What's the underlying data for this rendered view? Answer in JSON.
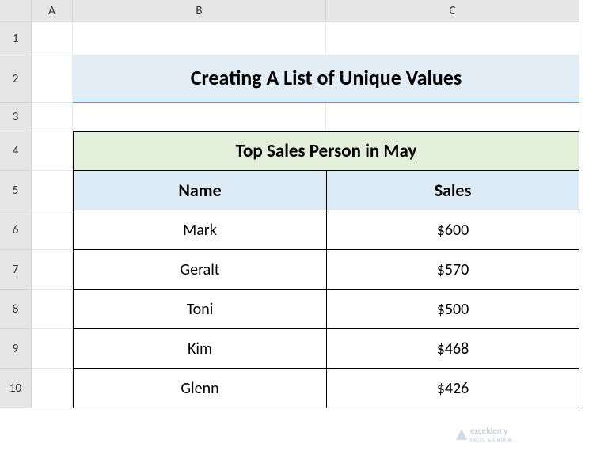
{
  "columns": [
    "A",
    "B",
    "C"
  ],
  "rows": [
    "1",
    "2",
    "3",
    "4",
    "5",
    "6",
    "7",
    "8",
    "9",
    "10"
  ],
  "title": "Creating A List of Unique Values",
  "table": {
    "caption": "Top Sales Person in May",
    "headers": {
      "name": "Name",
      "sales": "Sales"
    },
    "data": [
      {
        "name": "Mark",
        "sales": "$600"
      },
      {
        "name": "Geralt",
        "sales": "$570"
      },
      {
        "name": "Toni",
        "sales": "$500"
      },
      {
        "name": "Kim",
        "sales": "$468"
      },
      {
        "name": "Glenn",
        "sales": "$426"
      }
    ]
  },
  "watermark": {
    "brand": "exceldemy",
    "sub": "EXCEL & DATA A..."
  },
  "colors": {
    "title_bg": "#e3edf5",
    "title_underline": "#5b9bd5",
    "caption_bg": "#e2efda",
    "header_bg": "#ddebf7",
    "col_hdr_bg": "#e6e6e6",
    "grid_border": "#d4d4d4",
    "table_border": "#000000"
  }
}
